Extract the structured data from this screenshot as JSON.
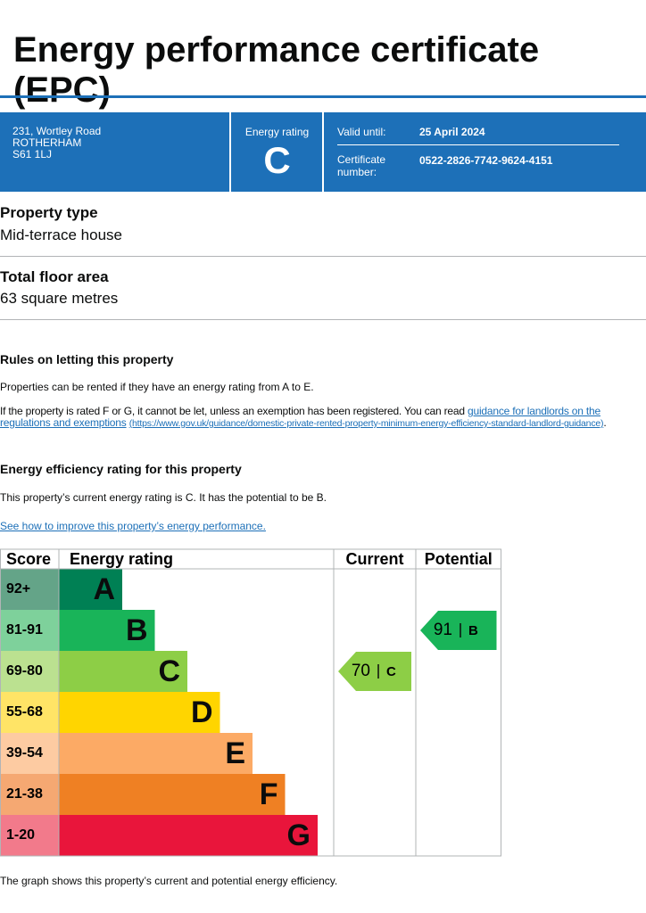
{
  "header": {
    "title": "Energy performance certificate (EPC)"
  },
  "summary": {
    "address": [
      "231, Wortley Road",
      "ROTHERHAM",
      "S61 1LJ"
    ],
    "rating_label": "Energy rating",
    "rating": "C",
    "valid_label": "Valid until:",
    "valid_date": "25 April 2024",
    "cert_label": "Certificate number:",
    "cert_number": "0522-2826-7742-9624-4151"
  },
  "property": [
    {
      "label": "Property type",
      "value": "Mid-terrace house"
    },
    {
      "label": "Total floor area",
      "value": "63 square metres"
    }
  ],
  "letting": {
    "heading": "Rules on letting this property",
    "para1": "Properties can be rented if they have an energy rating from A to E.",
    "para2_text": "If the property is rated F or G, it cannot be let, unless an exemption has been registered. You can read ",
    "para2_link": "guidance for landlords on the regulations and exemptions",
    "para2_url": "(https://www.gov.uk/guidance/domestic-private-rented-property-minimum-energy-efficiency-standard-landlord-guidance)",
    "para2_end": "."
  },
  "efficiency": {
    "heading": "Energy efficiency rating for this property",
    "text": "This property’s current energy rating is C. It has the potential to be B.",
    "link": "See how to improve this property’s energy performance."
  },
  "rating_table": {
    "headers": [
      "Score",
      "Energy rating",
      "Current",
      "Potential"
    ],
    "bands": [
      {
        "score": "92+",
        "letter": "A",
        "color": "#008054",
        "score_color": "#64a488"
      },
      {
        "score": "81-91",
        "letter": "B",
        "color": "#19b459",
        "score_color": "#7ed19b"
      },
      {
        "score": "69-80",
        "letter": "C",
        "color": "#8dce46",
        "score_color": "#bbe190"
      },
      {
        "score": "55-68",
        "letter": "D",
        "color": "#ffd500",
        "score_color": "#ffe466"
      },
      {
        "score": "39-54",
        "letter": "E",
        "color": "#fcaa65",
        "score_color": "#fdcba2"
      },
      {
        "score": "21-38",
        "letter": "F",
        "color": "#ef8023",
        "score_color": "#f5a872"
      },
      {
        "score": "1-20",
        "letter": "G",
        "color": "#e9153b",
        "score_color": "#f27a8b"
      }
    ],
    "current": {
      "score": 70,
      "letter": "C"
    },
    "potential": {
      "score": 91,
      "letter": "B"
    }
  },
  "footer": "The graph shows this property’s current and potential energy efficiency."
}
